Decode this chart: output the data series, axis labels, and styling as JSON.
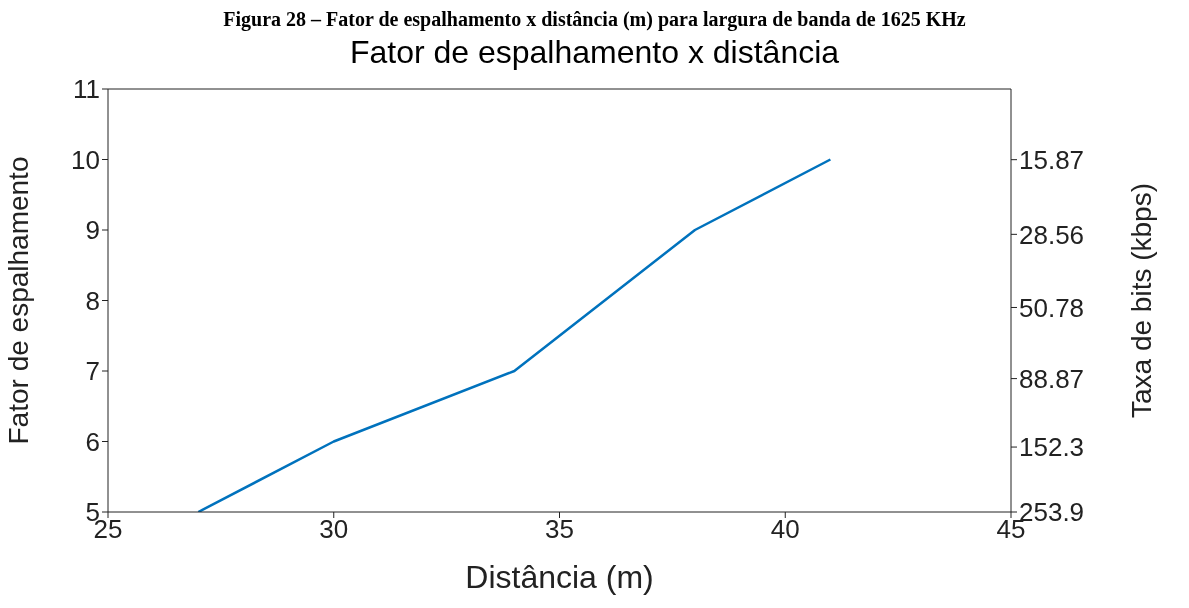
{
  "chart_data": {
    "type": "line",
    "title": "Figura 28 – Fator de espalhamento x distância (m) para largura de banda de 1625 KHz",
    "subtitle": "Fator de espalhamento x distância",
    "xlabel": "Distância (m)",
    "ylabel": "Fator de espalhamento",
    "y2label": "Taxa de bits (kbps)",
    "x": [
      27,
      30,
      34,
      38,
      41
    ],
    "series": [
      {
        "color": "#0072bd",
        "values": [
          5,
          6,
          7,
          9,
          10
        ]
      }
    ],
    "xlim": [
      25,
      45
    ],
    "xticks": [
      25,
      30,
      35,
      40,
      45
    ],
    "ylim": [
      5,
      11
    ],
    "yticks": [
      5,
      6,
      7,
      8,
      9,
      10,
      11
    ],
    "y2lim": [
      253.9,
      9.1
    ],
    "y2ticks": [
      253.9,
      152.3,
      88.87,
      50.78,
      28.56,
      15.87
    ],
    "log": "y2",
    "grid": false,
    "legend": false,
    "marker": "none",
    "line_style": "solid"
  }
}
